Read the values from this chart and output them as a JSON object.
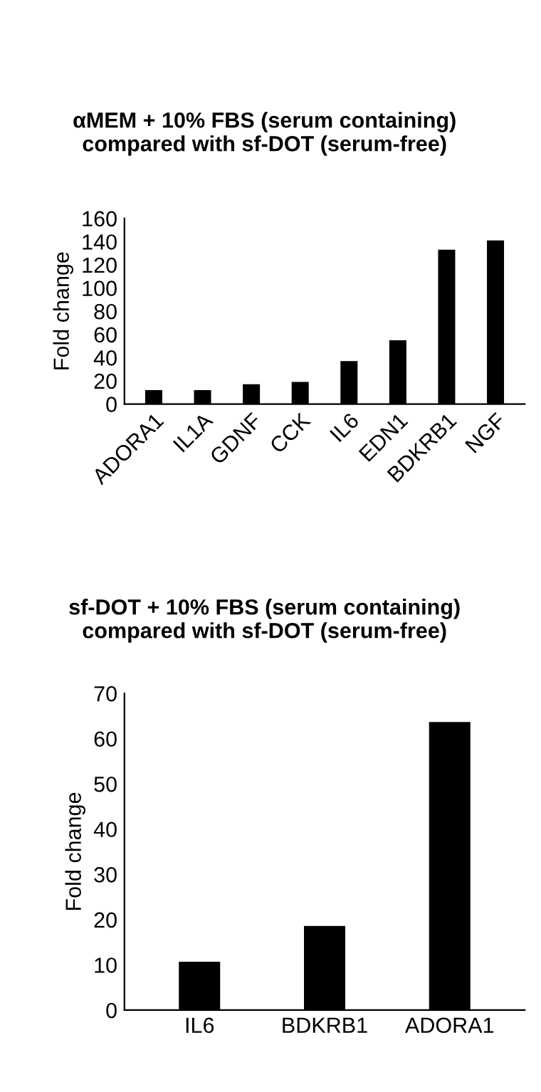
{
  "chart_data": [
    {
      "type": "bar",
      "title": "αMEM + 10% FBS (serum containing)\ncompared with sf-DOT (serum-free)",
      "ylabel": "Fold change",
      "categories": [
        "ADORA1",
        "IL1A",
        "GDNF",
        "CCK",
        "IL6",
        "EDN1",
        "BDKRB1",
        "NGF"
      ],
      "values": [
        12,
        12,
        17,
        19,
        37,
        55,
        133,
        141
      ],
      "color": "#000000",
      "ylim": [
        0,
        160
      ],
      "yticks": [
        0,
        20,
        40,
        60,
        80,
        100,
        120,
        140,
        160
      ],
      "grid": false
    },
    {
      "type": "bar",
      "title": "sf-DOT + 10% FBS (serum containing)\ncompared with sf-DOT (serum-free)",
      "ylabel": "Fold change",
      "categories": [
        "IL6",
        "BDKRB1",
        "ADORA1"
      ],
      "values": [
        10.7,
        18.6,
        63.7
      ],
      "color": "#000000",
      "ylim": [
        0,
        70
      ],
      "yticks": [
        0,
        10,
        20,
        30,
        40,
        50,
        60,
        70
      ],
      "grid": false
    }
  ]
}
